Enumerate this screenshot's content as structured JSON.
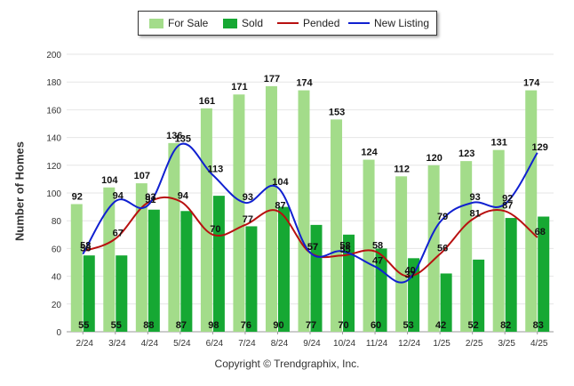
{
  "chart_data": {
    "type": "bar",
    "ylabel": "Number of Homes",
    "xlabel": "",
    "ylim": [
      0,
      200
    ],
    "yticks": [
      0,
      20,
      40,
      60,
      80,
      100,
      120,
      140,
      160,
      180,
      200
    ],
    "categories": [
      "2/24",
      "3/24",
      "4/24",
      "5/24",
      "6/24",
      "7/24",
      "8/24",
      "9/24",
      "10/24",
      "11/24",
      "12/24",
      "1/25",
      "2/25",
      "3/25",
      "4/25"
    ],
    "series": [
      {
        "name": "For Sale",
        "kind": "bar",
        "color": "#a3dc8a",
        "values": [
          92,
          104,
          107,
          136,
          161,
          171,
          177,
          174,
          153,
          124,
          112,
          120,
          123,
          131,
          174
        ]
      },
      {
        "name": "Sold",
        "kind": "bar",
        "color": "#16a833",
        "values": [
          55,
          55,
          88,
          87,
          98,
          76,
          90,
          77,
          70,
          60,
          53,
          42,
          52,
          82,
          83
        ]
      },
      {
        "name": "Pended",
        "kind": "line",
        "color": "#b81010",
        "values": [
          58,
          67,
          93,
          94,
          70,
          77,
          87,
          57,
          55,
          58,
          40,
          56,
          81,
          87,
          68
        ]
      },
      {
        "name": "New Listing",
        "kind": "line",
        "color": "#1020d0",
        "values": [
          56,
          94,
          91,
          135,
          113,
          93,
          104,
          57,
          58,
          47,
          37,
          79,
          93,
          92,
          129
        ]
      }
    ],
    "grid": true,
    "legend_position": "top"
  },
  "footer": {
    "copyright": "Copyright © Trendgraphix, Inc."
  }
}
